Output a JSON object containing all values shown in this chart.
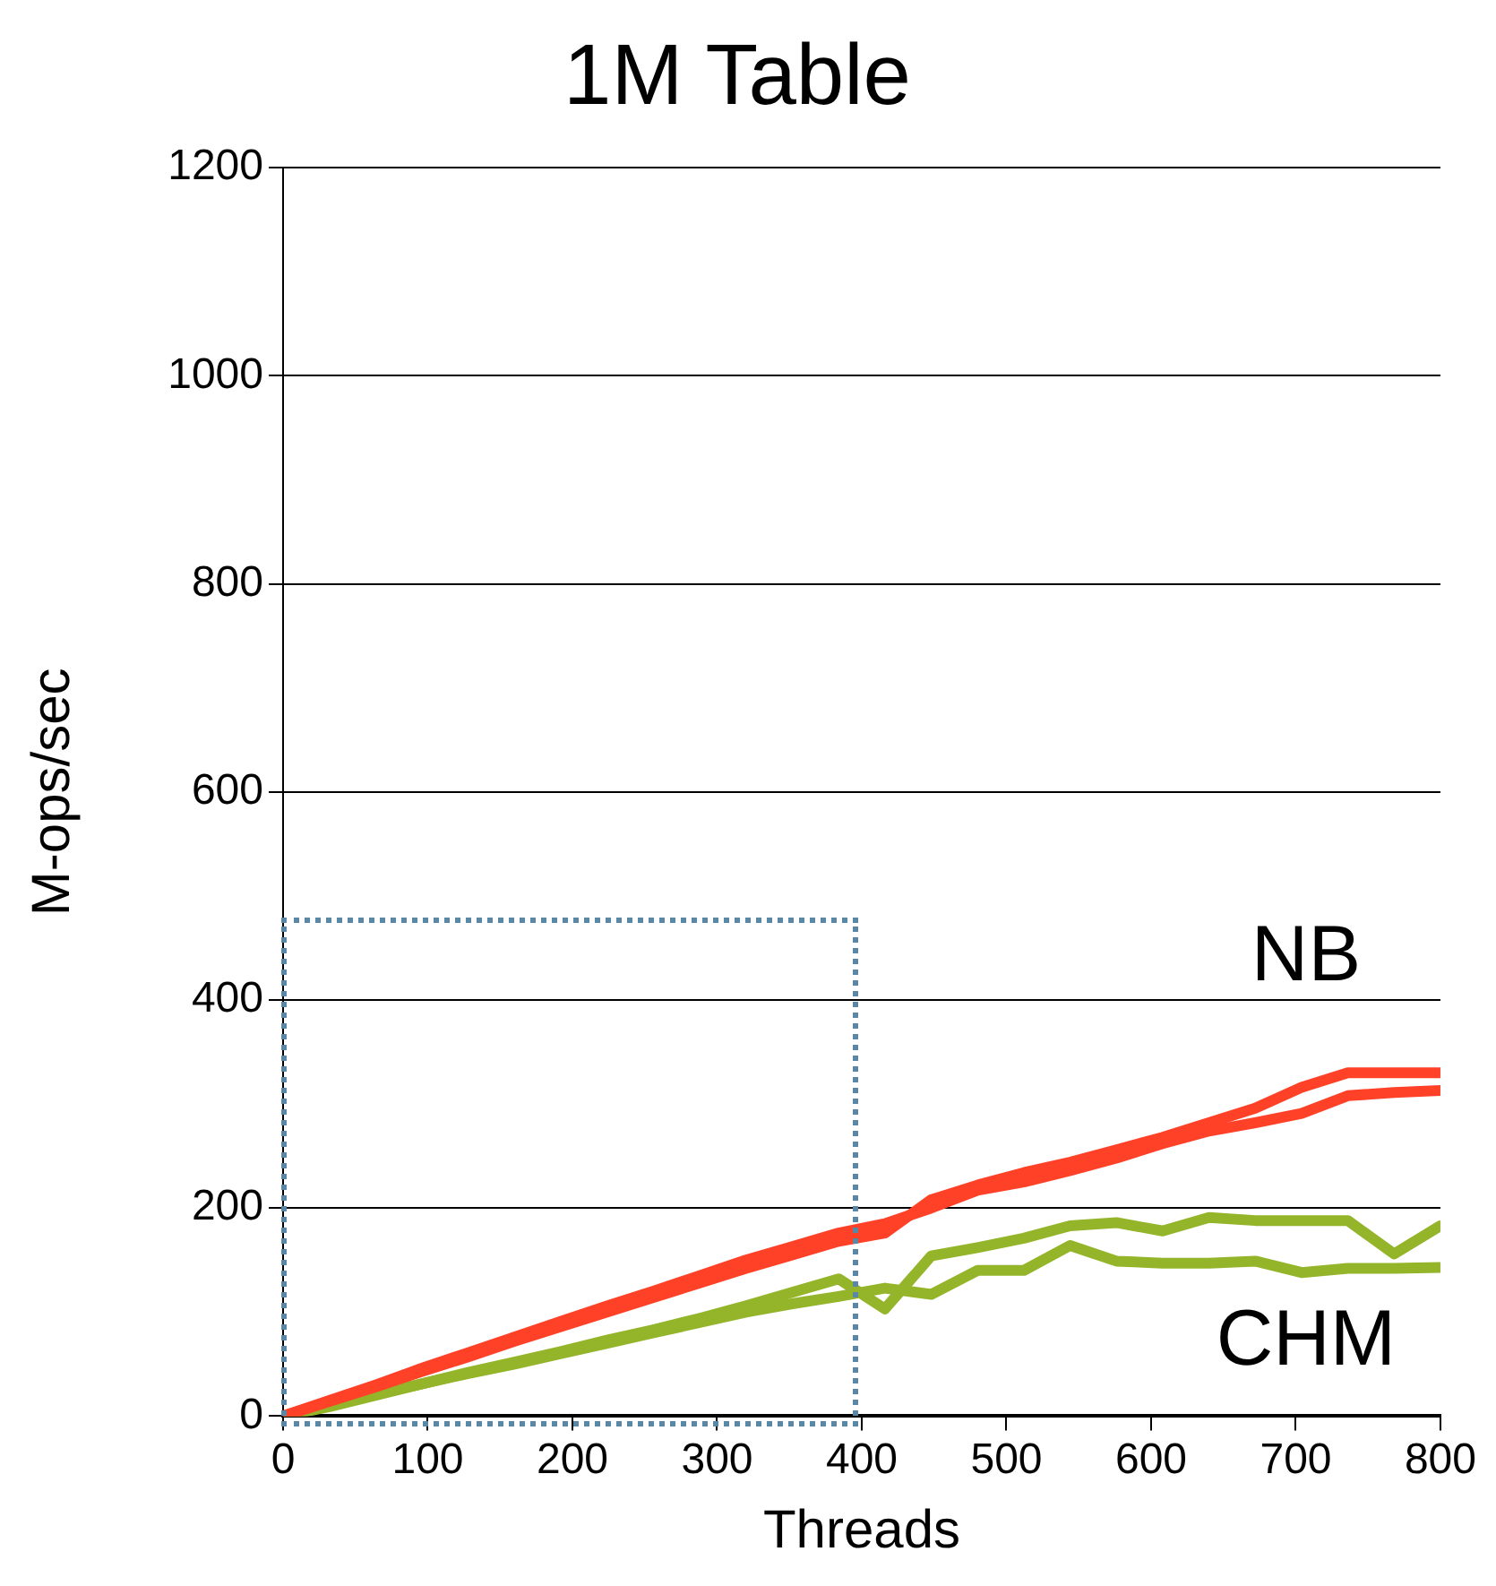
{
  "chart_data": {
    "type": "line",
    "title": "1M Table",
    "xlabel": "Threads",
    "ylabel": "M-ops/sec",
    "x": [
      0,
      32,
      64,
      96,
      128,
      160,
      192,
      224,
      256,
      288,
      320,
      352,
      384,
      416,
      448,
      480,
      512,
      544,
      576,
      608,
      640,
      672,
      704,
      736,
      768,
      800
    ],
    "series": [
      {
        "name": "NB",
        "color": "#ff4128",
        "values": [
          0,
          14,
          28,
          43,
          57,
          72,
          86,
          100,
          114,
          128,
          142,
          155,
          168,
          176,
          208,
          222,
          234,
          244,
          256,
          268,
          282,
          296,
          316,
          330,
          330,
          330
        ]
      },
      {
        "color": "#ff4128",
        "values": [
          0,
          15,
          30,
          46,
          61,
          76,
          91,
          106,
          120,
          135,
          150,
          163,
          176,
          185,
          200,
          217,
          225,
          236,
          248,
          262,
          274,
          282,
          291,
          308,
          311,
          313
        ]
      },
      {
        "name": "CHM",
        "color": "#94b52a",
        "values": [
          0,
          9,
          20,
          31,
          42,
          52,
          62,
          73,
          83,
          94,
          106,
          119,
          132,
          103,
          154,
          162,
          171,
          183,
          186,
          178,
          191,
          188,
          188,
          188,
          156,
          183
        ]
      },
      {
        "color": "#94b52a",
        "values": [
          0,
          10,
          21,
          31,
          41,
          50,
          60,
          70,
          80,
          90,
          100,
          108,
          115,
          123,
          117,
          140,
          140,
          164,
          149,
          147,
          147,
          149,
          138,
          142,
          142,
          143
        ]
      }
    ],
    "xlim": [
      0,
      800
    ],
    "xticks": [
      0,
      100,
      200,
      300,
      400,
      500,
      600,
      700,
      800
    ],
    "ylim": [
      0,
      1200
    ],
    "yticks": [
      0,
      200,
      400,
      600,
      800,
      1000,
      1200
    ],
    "grid": "y",
    "legend": false,
    "marker": "none",
    "line_style": "solid"
  }
}
